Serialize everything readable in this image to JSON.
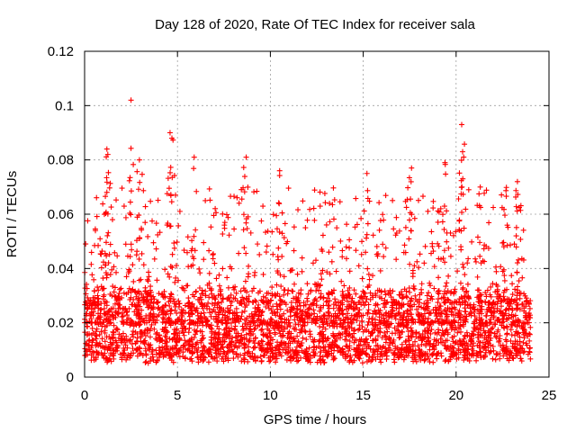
{
  "chart_data": {
    "type": "scatter",
    "title": "Day 128 of 2020, Rate Of TEC Index for receiver sala",
    "xlabel": "GPS time / hours",
    "ylabel": "ROTI / TECUs",
    "xlim": [
      0,
      25
    ],
    "ylim": [
      0,
      0.12
    ],
    "xticks": [
      0,
      5,
      10,
      15,
      20,
      25
    ],
    "xtick_labels": [
      "0",
      "5",
      "10",
      "15",
      "20",
      "25"
    ],
    "yticks": [
      0,
      0.02,
      0.04,
      0.06,
      0.08,
      0.1,
      0.12
    ],
    "ytick_labels": [
      "0",
      "0.02",
      "0.04",
      "0.06",
      "0.08",
      "0.1",
      "0.12"
    ],
    "grid": true,
    "marker": "+",
    "series": [
      {
        "name": "ROTI",
        "color": "#ff0000",
        "x_range": [
          0,
          24.0
        ],
        "dense_band": [
          0.005,
          0.03
        ],
        "notable_points": [
          {
            "x": 2.5,
            "y": 0.102
          },
          {
            "x": 4.6,
            "y": 0.09
          },
          {
            "x": 4.7,
            "y": 0.088
          },
          {
            "x": 5.9,
            "y": 0.081
          },
          {
            "x": 1.2,
            "y": 0.084
          },
          {
            "x": 1.25,
            "y": 0.082
          },
          {
            "x": 2.95,
            "y": 0.08
          },
          {
            "x": 8.7,
            "y": 0.081
          },
          {
            "x": 10.5,
            "y": 0.076
          },
          {
            "x": 15.2,
            "y": 0.075
          },
          {
            "x": 17.6,
            "y": 0.077
          },
          {
            "x": 19.4,
            "y": 0.079
          },
          {
            "x": 20.3,
            "y": 0.093
          },
          {
            "x": 20.35,
            "y": 0.083
          },
          {
            "x": 23.3,
            "y": 0.072
          },
          {
            "x": 21.3,
            "y": 0.07
          }
        ]
      }
    ]
  }
}
